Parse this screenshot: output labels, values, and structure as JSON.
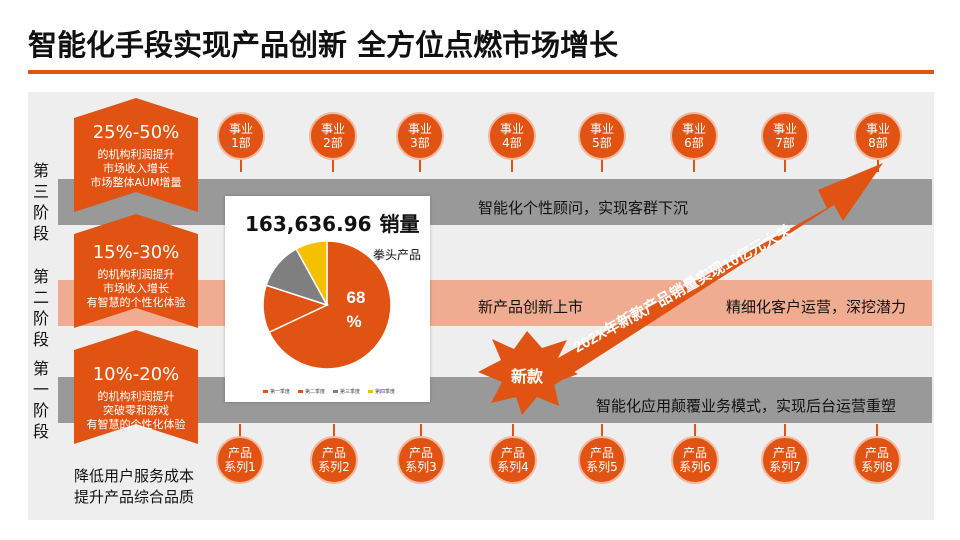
{
  "title": "智能化手段实现产品创新 全方位点燃市场增长",
  "stages": [
    {
      "label": "第三阶段",
      "pct": "25%-50%",
      "lines": [
        "的机构利润提升",
        "市场收入增长",
        "市场整体AUM增量"
      ]
    },
    {
      "label": "第二阶段",
      "pct": "15%-30%",
      "lines": [
        "的机构利润提升",
        "市场收入增长",
        "有智慧的个性化体验"
      ]
    },
    {
      "label": "第一阶段",
      "pct": "10%-20%",
      "lines": [
        "的机构利润提升",
        "突破零和游戏",
        "有智慧的个性化体验"
      ]
    }
  ],
  "bands": {
    "top": "智能化个性顾问，实现客群下沉",
    "mid_left": "新产品创新上市",
    "mid_right": "精细化客户运营，深挖潜力",
    "bottom": "智能化应用颠覆业务模式，实现后台运营重塑"
  },
  "departments": [
    {
      "l1": "事业",
      "l2": "1部"
    },
    {
      "l1": "事业",
      "l2": "2部"
    },
    {
      "l1": "事业",
      "l2": "3部"
    },
    {
      "l1": "事业",
      "l2": "4部"
    },
    {
      "l1": "事业",
      "l2": "5部"
    },
    {
      "l1": "事业",
      "l2": "6部"
    },
    {
      "l1": "事业",
      "l2": "7部"
    },
    {
      "l1": "事业",
      "l2": "8部"
    }
  ],
  "products": [
    {
      "l1": "产品",
      "l2": "系列1"
    },
    {
      "l1": "产品",
      "l2": "系列2"
    },
    {
      "l1": "产品",
      "l2": "系列3"
    },
    {
      "l1": "产品",
      "l2": "系列4"
    },
    {
      "l1": "产品",
      "l2": "系列5"
    },
    {
      "l1": "产品",
      "l2": "系列6"
    },
    {
      "l1": "产品",
      "l2": "系列7"
    },
    {
      "l1": "产品",
      "l2": "系列8"
    }
  ],
  "arrow_text": "202X年新款产品销量实现10亿元大关",
  "burst_text": "新款",
  "bottom_text": [
    "降低用户服务成本",
    "提升产品综合品质"
  ],
  "colors": {
    "accent": "#e05312",
    "band_gray": "#999999",
    "band_peach": "#efac90",
    "panel": "#eeeeee"
  },
  "chart": {
    "value": "163,636.96",
    "unit": "销量",
    "callout": "拳头产品",
    "slice_label": "68",
    "slice_label_pct": "%"
  },
  "chart_data": {
    "type": "pie",
    "categories": [
      "第一季度",
      "第二季度",
      "第三季度",
      "第四季度"
    ],
    "values": [
      68,
      12,
      12,
      8
    ],
    "colors": [
      "#e05312",
      "#e05312",
      "#7f7f7f",
      "#f5c000"
    ],
    "legend_position": "bottom"
  }
}
